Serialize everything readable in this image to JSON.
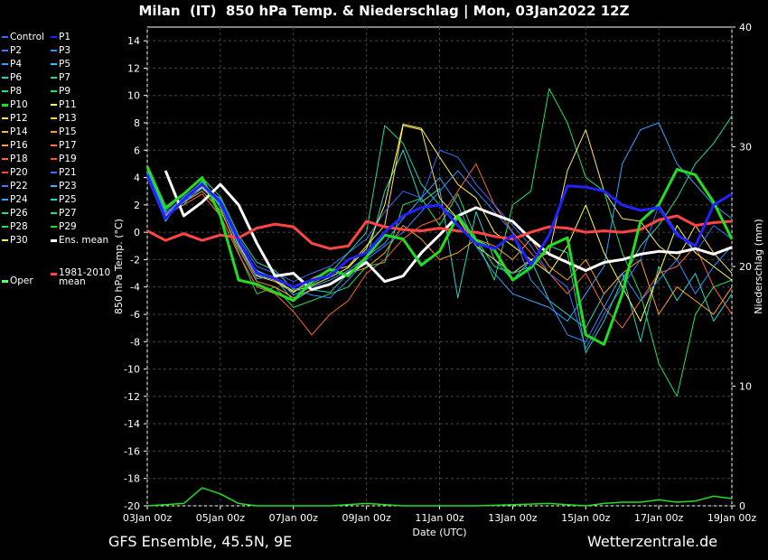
{
  "title": "Milan  (IT)  850 hPa Temp. & Niederschlag | Mon, 03Jan2022 12Z",
  "footer": {
    "left": "GFS Ensemble, 45.5N, 9E",
    "right": "Wetterzentrale.de"
  },
  "legend": [
    {
      "label": "Control",
      "color": "#3b6cff"
    },
    {
      "label": "P1",
      "color": "#2222ff"
    },
    {
      "label": "P2",
      "color": "#3a7bff"
    },
    {
      "label": "P3",
      "color": "#2f8fff"
    },
    {
      "label": "P4",
      "color": "#33a3ff"
    },
    {
      "label": "P5",
      "color": "#33c0ff"
    },
    {
      "label": "P6",
      "color": "#22d6c8"
    },
    {
      "label": "P7",
      "color": "#22d6a0"
    },
    {
      "label": "P8",
      "color": "#22e08a"
    },
    {
      "label": "P9",
      "color": "#22e060"
    },
    {
      "label": "P10",
      "color": "#22dd22",
      "thick": true
    },
    {
      "label": "P11",
      "color": "#ffff44"
    },
    {
      "label": "P12",
      "color": "#ffe066"
    },
    {
      "label": "P13",
      "color": "#ffcc44"
    },
    {
      "label": "P14",
      "color": "#ffb833"
    },
    {
      "label": "P15",
      "color": "#ffa022"
    },
    {
      "label": "P16",
      "color": "#ff9955"
    },
    {
      "label": "P17",
      "color": "#ff7744"
    },
    {
      "label": "P18",
      "color": "#ff6633"
    },
    {
      "label": "P19",
      "color": "#ff5533"
    },
    {
      "label": "P20",
      "color": "#ff4444"
    },
    {
      "label": "P21",
      "color": "#3b6cff"
    },
    {
      "label": "P22",
      "color": "#3a7bff"
    },
    {
      "label": "P23",
      "color": "#33b5ff"
    },
    {
      "label": "P24",
      "color": "#33a3ff"
    },
    {
      "label": "P25",
      "color": "#22d6c8"
    },
    {
      "label": "P26",
      "color": "#22e08a"
    },
    {
      "label": "P27",
      "color": "#22d6a0"
    },
    {
      "label": "P28",
      "color": "#22e060"
    },
    {
      "label": "P29",
      "color": "#22dd22"
    },
    {
      "label": "P30",
      "color": "#ffff44"
    },
    {
      "label": "Ens. mean",
      "color": "#ffffff",
      "thick": true
    },
    {
      "label": "Oper",
      "color": "#66ff66",
      "thick": true
    },
    {
      "label": "1981-2010\nmean",
      "color": "#ff4444",
      "thick": true
    }
  ],
  "chart_data": {
    "type": "line",
    "xlabel": "Date (UTC)",
    "ylabel_left": "850 hPa Temp. (°C)",
    "ylabel_right": "Niederschlag (mm)",
    "ylim_left": [
      -20,
      15
    ],
    "ylim_right": [
      0,
      40
    ],
    "xlim_hours": [
      0,
      384
    ],
    "x_ticks": [
      "03Jan 00z",
      "05Jan 00z",
      "07Jan 00z",
      "09Jan 00z",
      "11Jan 00z",
      "13Jan 00z",
      "15Jan 00z",
      "17Jan 00z",
      "19Jan 00z"
    ],
    "y_ticks_left": [
      14,
      12,
      10,
      8,
      6,
      4,
      2,
      0,
      -2,
      -4,
      -6,
      -8,
      -10,
      -12,
      -14,
      -16,
      -18,
      -20
    ],
    "y_ticks_right": [
      40,
      30,
      20,
      10,
      0
    ],
    "grid": true,
    "series": [
      {
        "name": "Ens. mean",
        "color": "#ffffff",
        "width": 3,
        "hours": [
          12,
          24,
          36,
          48,
          60,
          72,
          84,
          96,
          108,
          120,
          132,
          144,
          156,
          168,
          180,
          192,
          204,
          216,
          228,
          240,
          252,
          264,
          276,
          288,
          300,
          312,
          324,
          336,
          348,
          360,
          372,
          384
        ],
        "values": [
          4.5,
          1.2,
          2.2,
          3.5,
          2.0,
          -0.8,
          -3.2,
          -3.0,
          -4.2,
          -3.8,
          -3.0,
          -2.2,
          -3.6,
          -3.2,
          -1.5,
          -0.2,
          1.2,
          1.8,
          1.3,
          0.8,
          -0.5,
          -1.6,
          -2.2,
          -2.8,
          -2.2,
          -2.0,
          -1.6,
          -1.4,
          -1.5,
          -1.2,
          -1.6,
          -1.1
        ]
      },
      {
        "name": "1981-2010 mean",
        "color": "#ff4444",
        "width": 3,
        "hours": [
          0,
          12,
          24,
          36,
          48,
          60,
          72,
          84,
          96,
          108,
          120,
          132,
          144,
          156,
          168,
          180,
          192,
          204,
          216,
          228,
          240,
          252,
          264,
          276,
          288,
          300,
          312,
          324,
          336,
          348,
          360,
          372,
          384
        ],
        "values": [
          0.1,
          -0.6,
          -0.1,
          -0.6,
          -0.2,
          -0.4,
          0.3,
          0.6,
          0.4,
          -0.8,
          -1.2,
          -1.0,
          0.8,
          0.4,
          0.2,
          0.1,
          0.3,
          0.1,
          0.0,
          -0.3,
          -0.5,
          0.0,
          0.4,
          0.3,
          0.0,
          0.1,
          0.0,
          0.2,
          0.9,
          1.2,
          0.5,
          0.7,
          0.8
        ]
      },
      {
        "name": "Oper",
        "color": "#22dd22",
        "width": 3,
        "hours": [
          0,
          12,
          24,
          36,
          48,
          60,
          72,
          84,
          96,
          108,
          120,
          132,
          144,
          156,
          168,
          180,
          192,
          204,
          216,
          228,
          240,
          252,
          264,
          276,
          288,
          300,
          312,
          324,
          336,
          348,
          360,
          372,
          384
        ],
        "values": [
          4.8,
          1.8,
          2.8,
          4.0,
          1.2,
          -3.5,
          -3.8,
          -4.4,
          -5.0,
          -3.6,
          -2.7,
          -3.2,
          -1.8,
          -0.2,
          -0.5,
          -2.4,
          -1.4,
          1.2,
          -0.6,
          -1.3,
          -3.5,
          -2.6,
          -1.0,
          -0.4,
          -7.5,
          -8.2,
          -4.5,
          0.8,
          2.0,
          4.6,
          4.2,
          2.2,
          -0.5
        ]
      },
      {
        "name": "P1",
        "color": "#2222ff",
        "width": 3,
        "hours": [
          0,
          12,
          24,
          36,
          48,
          60,
          72,
          84,
          96,
          108,
          120,
          132,
          144,
          156,
          168,
          180,
          192,
          204,
          216,
          228,
          240,
          252,
          264,
          276,
          288,
          300,
          312,
          324,
          336,
          348,
          360,
          372,
          384
        ],
        "values": [
          4.2,
          1.0,
          2.4,
          3.5,
          2.2,
          -0.6,
          -3.0,
          -3.4,
          -4.0,
          -3.5,
          -3.2,
          -2.0,
          -1.5,
          0.0,
          1.2,
          1.8,
          2.0,
          0.5,
          -0.8,
          -1.2,
          -0.2,
          -2.4,
          -0.2,
          3.4,
          3.3,
          3.0,
          2.0,
          1.6,
          1.8,
          -0.2,
          -1.0,
          2.0,
          2.8
        ]
      }
    ],
    "members": [
      {
        "name": "P6",
        "color": "#22d6c8",
        "values": [
          4.0,
          0.8,
          2.6,
          3.2,
          2.5,
          -1.0,
          -2.8,
          -3.4,
          -5.0,
          -4.2,
          -4.4,
          -3.0,
          -2.0,
          3.0,
          6.0,
          2.2,
          3.2,
          -4.8,
          1.5,
          -2.0,
          -3.5,
          -2.0,
          -5.0,
          -6.0,
          -7.0,
          -4.5,
          -3.0,
          -8.0,
          -2.5,
          -5.0,
          -3.0,
          -6.5,
          -4.5
        ]
      },
      {
        "name": "P9",
        "color": "#22e060",
        "values": [
          4.6,
          1.5,
          2.0,
          3.8,
          1.8,
          -1.5,
          -4.5,
          -4.0,
          -5.5,
          -5.0,
          -4.5,
          -4.0,
          -2.5,
          -2.2,
          2.0,
          2.5,
          0.5,
          2.8,
          -0.5,
          -3.5,
          2.0,
          3.0,
          10.5,
          8.0,
          4.0,
          3.0,
          -1.5,
          -4.5,
          -9.6,
          -12.0,
          -6.0,
          -4.0,
          -3.5
        ]
      },
      {
        "name": "P12",
        "color": "#ffe066",
        "values": [
          4.4,
          1.2,
          2.4,
          3.3,
          2.0,
          -0.9,
          -3.2,
          -3.6,
          -4.4,
          -3.4,
          -2.8,
          -2.5,
          -1.0,
          0.5,
          7.8,
          7.5,
          2.5,
          1.0,
          -1.0,
          -2.0,
          -3.0,
          -2.0,
          -1.5,
          4.5,
          7.5,
          3.0,
          1.0,
          0.8,
          -1.0,
          -2.0,
          0.5,
          -1.5,
          -3.0
        ]
      },
      {
        "name": "P15",
        "color": "#ffa022",
        "values": [
          4.3,
          1.1,
          2.2,
          3.0,
          1.6,
          -1.2,
          -3.6,
          -4.0,
          -4.8,
          -4.2,
          -3.8,
          -3.0,
          -2.6,
          -1.5,
          0.5,
          -0.5,
          -2.0,
          -1.5,
          -0.5,
          -1.0,
          -2.0,
          -0.5,
          -2.5,
          -3.5,
          -2.0,
          -4.5,
          -3.0,
          -2.0,
          -6.0,
          -4.0,
          -5.0,
          -6.0,
          -4.0
        ]
      },
      {
        "name": "P18",
        "color": "#ff6633",
        "values": [
          4.1,
          1.3,
          2.0,
          2.8,
          1.2,
          -1.6,
          -4.0,
          -4.5,
          -5.8,
          -7.5,
          -6.0,
          -5.0,
          -3.0,
          -2.0,
          -0.5,
          0.5,
          1.0,
          3.0,
          5.0,
          2.0,
          0.0,
          -1.5,
          -3.0,
          -4.5,
          -3.0,
          -5.5,
          -7.0,
          -5.0,
          -3.0,
          -2.5,
          -1.0,
          -4.0,
          -6.0
        ]
      },
      {
        "name": "P21",
        "color": "#3b6cff",
        "values": [
          4.5,
          1.4,
          2.6,
          3.6,
          2.4,
          -0.4,
          -2.5,
          -3.0,
          -3.6,
          -3.0,
          -2.5,
          -1.5,
          -0.5,
          1.5,
          3.0,
          2.5,
          6.0,
          5.5,
          3.5,
          2.0,
          0.5,
          -1.0,
          -3.0,
          -4.0,
          -8.5,
          -6.0,
          -4.0,
          -2.0,
          2.0,
          0.0,
          -1.5,
          0.5,
          -0.5
        ]
      },
      {
        "name": "P24",
        "color": "#33a3ff",
        "values": [
          4.3,
          1.0,
          2.2,
          3.2,
          2.0,
          -1.0,
          -3.4,
          -3.2,
          -4.6,
          -4.0,
          -3.5,
          -2.8,
          -1.8,
          -0.8,
          1.0,
          2.5,
          4.0,
          2.0,
          -1.0,
          -3.0,
          -4.5,
          -5.0,
          -5.5,
          -6.5,
          -4.5,
          -2.5,
          5.0,
          7.5,
          8.0,
          5.0,
          3.5,
          2.0,
          1.0
        ]
      },
      {
        "name": "P27",
        "color": "#22d6a0",
        "values": [
          4.6,
          1.6,
          2.8,
          4.0,
          2.6,
          -0.2,
          -2.2,
          -2.8,
          -4.2,
          -3.8,
          -3.0,
          -1.5,
          0.0,
          7.8,
          6.5,
          3.5,
          2.0,
          1.0,
          -0.5,
          -2.5,
          -3.0,
          -2.5,
          -1.0,
          -1.5,
          -8.8,
          -6.5,
          -3.5,
          -1.0,
          0.5,
          2.5,
          5.0,
          6.5,
          8.5
        ]
      },
      {
        "name": "P30",
        "color": "#ffff44",
        "values": [
          4.2,
          1.1,
          2.3,
          3.4,
          2.1,
          -0.7,
          -3.1,
          -3.5,
          -4.3,
          -3.9,
          -3.3,
          -2.6,
          -1.2,
          2.0,
          7.9,
          7.6,
          5.5,
          3.5,
          2.5,
          0.0,
          -1.0,
          -2.0,
          -3.0,
          -1.0,
          2.0,
          -1.5,
          -4.0,
          -6.5,
          -3.0,
          0.5,
          -1.5,
          -2.5,
          -3.5
        ]
      },
      {
        "name": "P3",
        "color": "#2f8fff",
        "values": [
          4.4,
          1.3,
          2.5,
          3.7,
          2.3,
          -0.5,
          -2.9,
          -3.3,
          -4.1,
          -4.6,
          -4.8,
          -3.5,
          -2.0,
          -1.0,
          0.0,
          1.5,
          3.0,
          4.5,
          3.0,
          1.5,
          0.0,
          -3.5,
          -5.0,
          -7.5,
          -8.0,
          -5.5,
          -3.0,
          -5.0,
          -3.5,
          -2.0,
          -4.5,
          -2.5,
          -1.0
        ]
      }
    ],
    "precip_total": {
      "name": "Niederschlag",
      "hours": [
        0,
        24,
        36,
        48,
        60,
        72,
        96,
        120,
        144,
        168,
        192,
        216,
        240,
        264,
        288,
        300,
        312,
        324,
        336,
        348,
        360,
        372,
        384
      ],
      "values": [
        0,
        0.2,
        1.5,
        1.0,
        0.2,
        0,
        0,
        0,
        0.2,
        0,
        0,
        0,
        0.1,
        0.2,
        0,
        0.2,
        0.3,
        0.3,
        0.5,
        0.3,
        0.4,
        0.8,
        0.6
      ]
    }
  }
}
